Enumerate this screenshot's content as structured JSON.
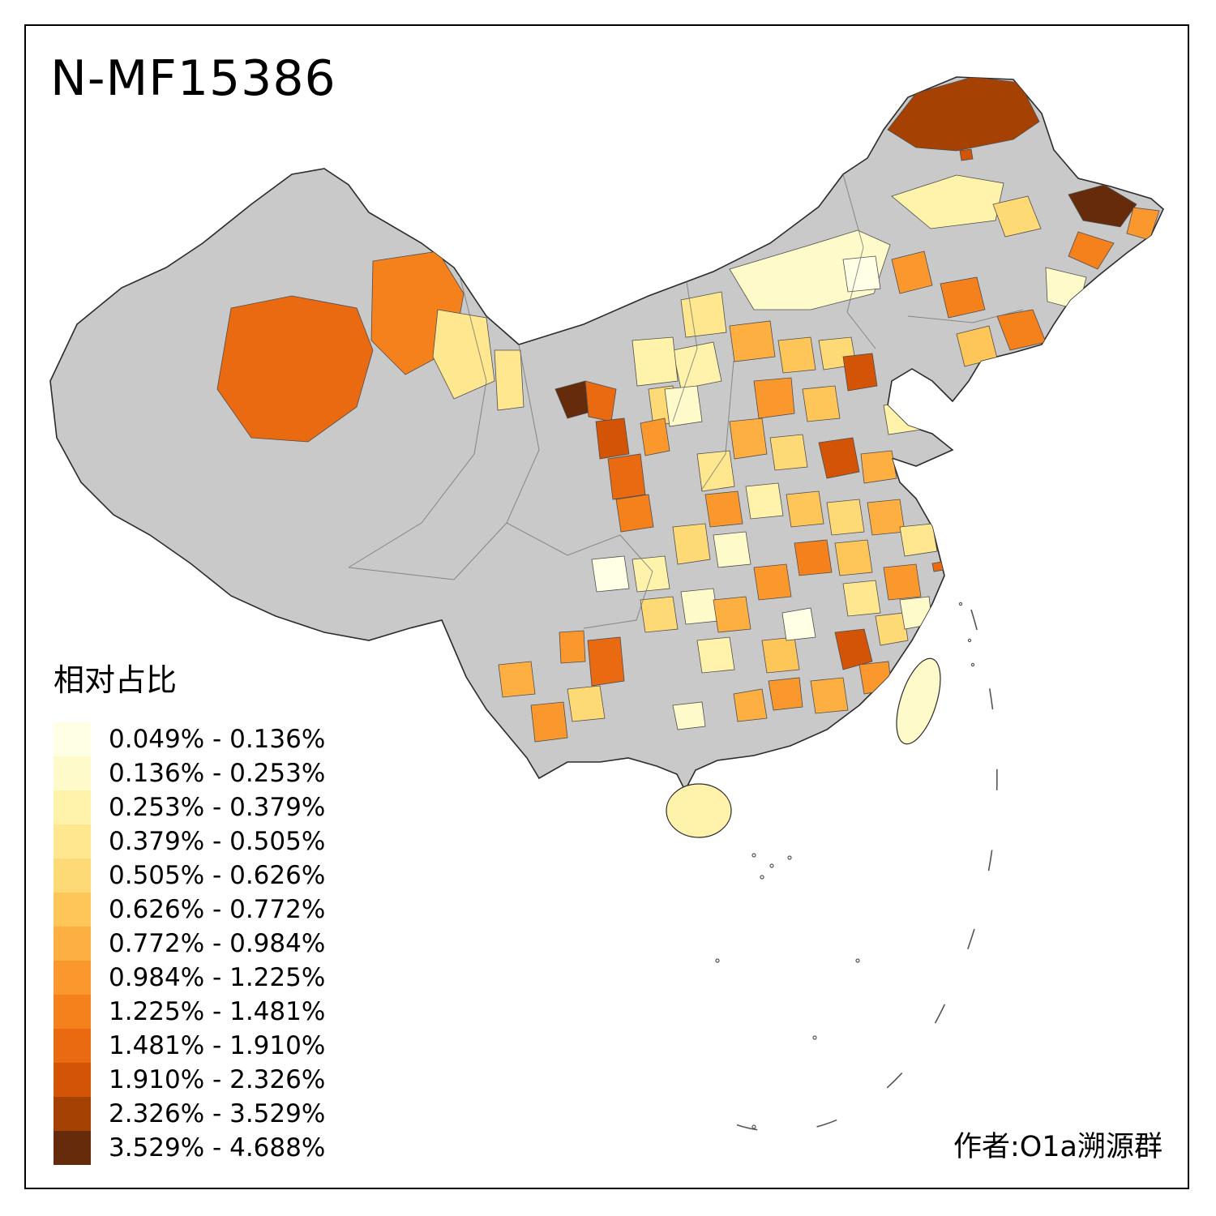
{
  "title": "N-MF15386",
  "attribution": "作者:O1a溯源群",
  "legend": {
    "title": "相对占比",
    "no_data_color": "#C9C9C9",
    "border_color": "#4d4d4d",
    "classes": [
      {
        "range": "0.049% - 0.136%",
        "color": "#FFFFE5"
      },
      {
        "range": "0.136% - 0.253%",
        "color": "#FFFAC9"
      },
      {
        "range": "0.253% - 0.379%",
        "color": "#FFF3AC"
      },
      {
        "range": "0.379% - 0.505%",
        "color": "#FEE78F"
      },
      {
        "range": "0.505% - 0.626%",
        "color": "#FEDA76"
      },
      {
        "range": "0.626% - 0.772%",
        "color": "#FEC559"
      },
      {
        "range": "0.772% - 0.984%",
        "color": "#FEAF41"
      },
      {
        "range": "0.984% - 1.225%",
        "color": "#FB982D"
      },
      {
        "range": "1.225% - 1.481%",
        "color": "#F5811D"
      },
      {
        "range": "1.481% - 1.910%",
        "color": "#E96A10"
      },
      {
        "range": "1.910% - 2.326%",
        "color": "#D35407"
      },
      {
        "range": "2.326% - 3.529%",
        "color": "#A64104"
      },
      {
        "range": "3.529% - 4.688%",
        "color": "#662B0A"
      }
    ]
  },
  "map_regions": {
    "r1": 12,
    "r2": 11,
    "r3": 13,
    "r4": 8,
    "r5": 9,
    "r6": 2,
    "r7": 3,
    "r8": 8,
    "r9": 9,
    "r10": 5,
    "r11": 9,
    "r12": 6,
    "r13": 2,
    "r14": 10,
    "r15": 9,
    "r16": 4,
    "r17": 4,
    "r18": 13,
    "r19": 10,
    "r20": 11,
    "r21": 10,
    "r22": 9,
    "r23": 5,
    "r24": 8,
    "r25": 3,
    "r26": 7,
    "r27": 6,
    "r28": 5,
    "r29": 11,
    "r30": 8,
    "r31": 6,
    "r32": 7,
    "r33": 5,
    "r34": 11,
    "r35": 7,
    "r36": 3,
    "r37": 4,
    "r38": 8,
    "r39": 3,
    "r40": 6,
    "r41": 5,
    "r42": 7,
    "r43": 4,
    "r44": 5,
    "r45": 2,
    "r46": 9,
    "r47": 6,
    "r48": 8,
    "r49": 8,
    "r50": 4,
    "r51": 1,
    "r52": 3,
    "r53": 5,
    "r54": 2,
    "r55": 7,
    "r57": 3,
    "r58": 6,
    "r59": 8,
    "r60": 10,
    "r61": 8,
    "r62": 7,
    "r63": 8,
    "r64": 5,
    "r65": 2,
    "r66": 11,
    "r67": 8,
    "r68": 7,
    "r69": 5,
    "r71": 2,
    "r72": 3,
    "r73": 2,
    "r74": 4,
    "r75": 3,
    "r76": 2,
    "r79": 1,
    "r80": 7,
    "r81": 1,
    "r82": 10
  }
}
